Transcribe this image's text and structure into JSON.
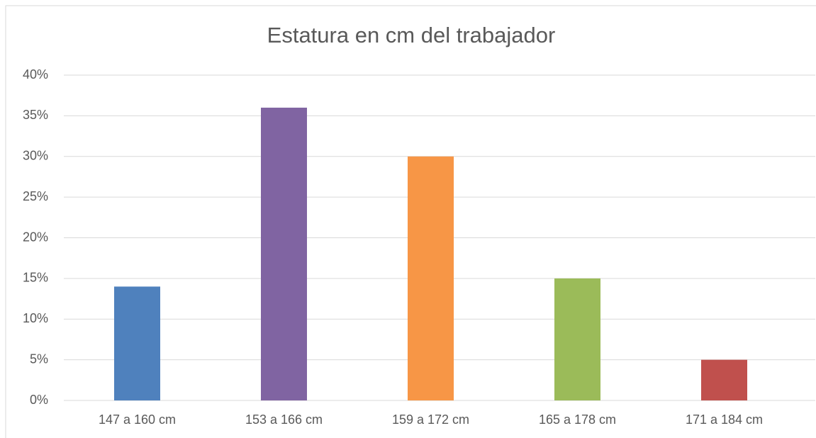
{
  "chart_data": {
    "type": "bar",
    "title": "Estatura en cm del trabajador",
    "categories": [
      "147 a 160 cm",
      "153 a 166 cm",
      "159 a 172 cm",
      "165 a 178 cm",
      "171 a 184 cm"
    ],
    "values": [
      14,
      36,
      30,
      15,
      5
    ],
    "colors": [
      "#4f81bd",
      "#8064a2",
      "#f79646",
      "#9bbb59",
      "#c0504d"
    ],
    "ylim": [
      0,
      40
    ],
    "yticks": [
      {
        "value": 0,
        "label": "0%"
      },
      {
        "value": 5,
        "label": "5%"
      },
      {
        "value": 10,
        "label": "10%"
      },
      {
        "value": 15,
        "label": "15%"
      },
      {
        "value": 20,
        "label": "20%"
      },
      {
        "value": 25,
        "label": "25%"
      },
      {
        "value": 30,
        "label": "30%"
      },
      {
        "value": 35,
        "label": "35%"
      },
      {
        "value": 40,
        "label": "40%"
      }
    ],
    "grid": true
  }
}
